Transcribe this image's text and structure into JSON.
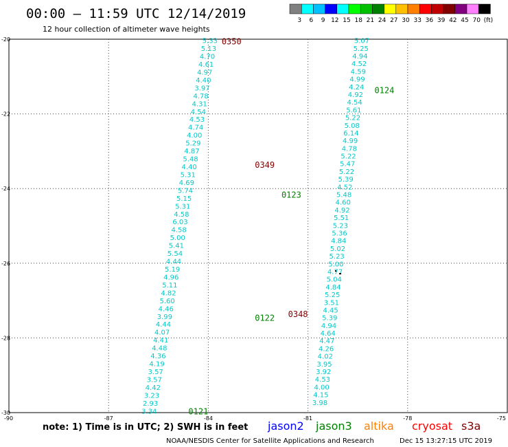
{
  "header": {
    "title": "00:00 — 11:59 UTC 12/14/2019",
    "subtitle": "12 hour collection of altimeter wave heights"
  },
  "colorbar": {
    "labels": [
      "3",
      "6",
      "9",
      "12",
      "15",
      "18",
      "21",
      "24",
      "27",
      "30",
      "33",
      "36",
      "39",
      "42",
      "45",
      "70",
      "(ft)"
    ],
    "colors": [
      "#808080",
      "#00ffff",
      "#00c0ff",
      "#0000ff",
      "#00ffff",
      "#00ff00",
      "#00c000",
      "#008000",
      "#ffff00",
      "#ffc000",
      "#ff8000",
      "#ff0000",
      "#c00000",
      "#800000",
      "#800080",
      "#ff80ff",
      "#000000"
    ]
  },
  "footer": {
    "note": "note: 1) Time is in UTC; 2) SWH is in feet",
    "credit": "NOAA/NESDIS Center for Satellite Applications and Research",
    "timestamp": "Dec 15 13:27:15 UTC 2019"
  },
  "legend": [
    {
      "name": "jason2",
      "color": "#0000ff"
    },
    {
      "name": "jason3",
      "color": "#008000"
    },
    {
      "name": "altika",
      "color": "#ff8000"
    },
    {
      "name": "cryosat",
      "color": "#ff0000"
    },
    {
      "name": "s3a",
      "color": "#800000"
    }
  ],
  "chart_data": {
    "type": "scatter",
    "xlim": [
      -90,
      -75
    ],
    "ylim": [
      -30,
      -20
    ],
    "x_ticks": [
      "-90",
      "-87",
      "-84",
      "-81",
      "-78",
      "-75"
    ],
    "y_ticks": [
      "-20",
      "-22",
      "-24",
      "-26",
      "-28",
      "-30"
    ],
    "grid": true,
    "point_color": "#00c8c8",
    "track_a": {
      "values": [
        "5.33",
        "5.13",
        "4.70",
        "4.61",
        "4.97",
        "4.40",
        "3.97",
        "4.78",
        "4.31",
        "4.54",
        "4.53",
        "4.74",
        "4.00",
        "5.29",
        "4.87",
        "5.48",
        "4.40",
        "5.31",
        "4.69",
        "5.74",
        "5.15",
        "5.31",
        "4.58",
        "6.03",
        "4.58",
        "5.00",
        "5.41",
        "5.54",
        "4.44",
        "5.19",
        "4.96",
        "5.11",
        "4.82",
        "5.60",
        "4.46",
        "3.99",
        "4.44",
        "4.07",
        "4.41",
        "4.48",
        "4.36",
        "4.19",
        "3.57",
        "3.57",
        "4.42",
        "3.23",
        "2.93",
        "3.34"
      ],
      "lon_start": -83.95,
      "lat_start": -20.03,
      "lon_end": -85.78,
      "lat_end": -29.95
    },
    "track_b": {
      "values": [
        "5.07",
        "5.25",
        "4.94",
        "4.52",
        "4.59",
        "4.99",
        "4.24",
        "4.92",
        "4.54",
        "5.61",
        "5.22",
        "5.08",
        "6.14",
        "4.99",
        "4.78",
        "5.22",
        "5.47",
        "5.22",
        "5.39",
        "4.52",
        "5.48",
        "4.60",
        "4.92",
        "5.51",
        "5.23",
        "5.36",
        "4.84",
        "5.02",
        "5.23",
        "5.00",
        "4.77",
        "5.04",
        "4.84",
        "5.25",
        "3.51",
        "4.45",
        "5.39",
        "4.94",
        "4.64",
        "4.47",
        "4.26",
        "4.02",
        "3.95",
        "3.92",
        "4.53",
        "4.00",
        "4.15",
        "3.98"
      ],
      "lon_start": -79.38,
      "lat_start": -20.03,
      "lon_end": -80.64,
      "lat_end": -29.72
    },
    "time_labels": [
      {
        "text": "0350",
        "lon": -83.3,
        "lat": -20.05,
        "color": "#800000"
      },
      {
        "text": "0349",
        "lon": -82.3,
        "lat": -23.35,
        "color": "#800000"
      },
      {
        "text": "0348",
        "lon": -81.3,
        "lat": -27.35,
        "color": "#800000"
      },
      {
        "text": "0124",
        "lon": -78.7,
        "lat": -21.35,
        "color": "#008000"
      },
      {
        "text": "0123",
        "lon": -81.5,
        "lat": -24.15,
        "color": "#008000"
      },
      {
        "text": "0122",
        "lon": -82.3,
        "lat": -27.45,
        "color": "#008000"
      },
      {
        "text": "0121",
        "lon": -84.3,
        "lat": -29.95,
        "color": "#008000"
      }
    ]
  }
}
